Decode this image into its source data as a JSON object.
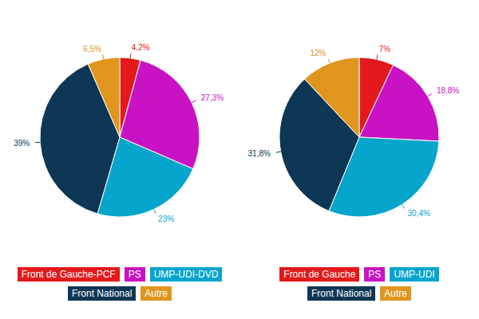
{
  "chart_data": [
    {
      "type": "pie",
      "categories": [
        "Front de Gauche-PCF",
        "PS",
        "UMP-UDI-DVD",
        "Front National",
        "Autre"
      ],
      "values": [
        4.2,
        27.3,
        23,
        39,
        6.5
      ],
      "value_labels": [
        "4,2%",
        "27,3%",
        "23%",
        "39%",
        "6,5%"
      ],
      "colors": [
        "#e3191b",
        "#c912c4",
        "#06a5cc",
        "#0e3756",
        "#e0961e"
      ],
      "data_labels": true
    },
    {
      "type": "pie",
      "categories": [
        "Front de Gauche",
        "PS",
        "UMP-UDI",
        "Front National",
        "Autre"
      ],
      "values": [
        7,
        18.8,
        30.4,
        31.8,
        12
      ],
      "value_labels": [
        "7%",
        "18,8%",
        "30,4%",
        "31,8%",
        "12%"
      ],
      "colors": [
        "#e3191b",
        "#c912c4",
        "#06a5cc",
        "#0e3756",
        "#e0961e"
      ],
      "data_labels": true
    }
  ]
}
